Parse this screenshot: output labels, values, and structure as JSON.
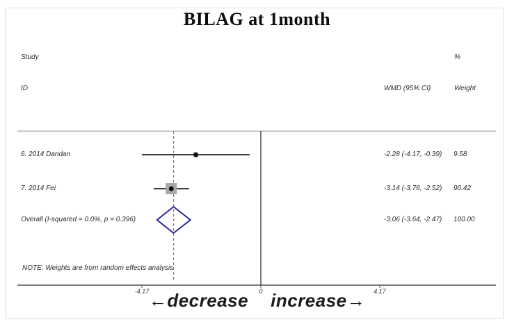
{
  "title": "BILAG at 1month",
  "headers": {
    "study": "Study",
    "percent": "%",
    "id": "ID",
    "wmd": "WMD (95% CI)",
    "weight": "Weight"
  },
  "chart_data": {
    "type": "forest",
    "title": "BILAG at 1month",
    "effect_measure": "WMD (95% CI)",
    "axis": {
      "ticks": [
        -4.17,
        0,
        4.17
      ],
      "tick_labels": [
        "-4.17",
        "0",
        "4.17"
      ],
      "zero_line": 0,
      "reference_line": -3.06,
      "xlim": [
        -8.5,
        8.5
      ]
    },
    "studies": [
      {
        "label": "6. 2014 Dandan",
        "estimate": -2.28,
        "ci_low": -4.17,
        "ci_high": -0.39,
        "wmd_text": "-2.28 (-4.17, -0.39)",
        "weight_text": "9.58",
        "weight_pct": 9.58
      },
      {
        "label": "7. 2014 Fei",
        "estimate": -3.14,
        "ci_low": -3.76,
        "ci_high": -2.52,
        "wmd_text": "-3.14 (-3.76, -2.52)",
        "weight_text": "90.42",
        "weight_pct": 90.42
      }
    ],
    "overall": {
      "label": "Overall  (I-squared = 0.0%, p = 0.396)",
      "estimate": -3.06,
      "ci_low": -3.64,
      "ci_high": -2.47,
      "wmd_text": "-3.06 (-3.64, -2.47)",
      "weight_text": "100.00",
      "weight_pct": 100.0
    },
    "note": "NOTE: Weights are from random effects analysis",
    "x_annotation": {
      "left": "←decrease",
      "right": "increase→"
    }
  },
  "colors": {
    "ci_line": "#3d3d3d",
    "marker_dot": "#111111",
    "weight_square": "#a9a9a9",
    "diamond_stroke": "#26269a",
    "reference_dashed": "#c0615e",
    "axis_line": "#4d4d4d",
    "plot_top_border": "#cacaca",
    "figure_border": "#dde1e6"
  }
}
